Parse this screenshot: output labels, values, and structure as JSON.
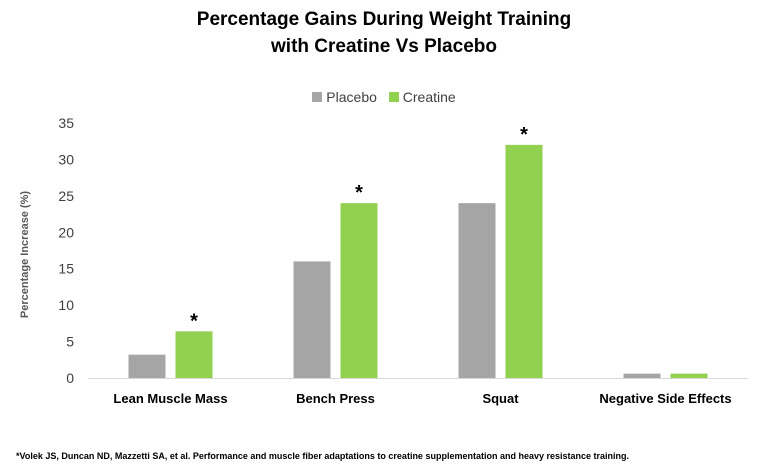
{
  "chart_data": {
    "type": "bar",
    "title_line1": "Percentage Gains During Weight Training",
    "title_line2": "with Creatine Vs Placebo",
    "xlabel": "",
    "ylabel": "Percentage Increase (%)",
    "ylim": [
      0,
      35
    ],
    "yticks": [
      0,
      5,
      10,
      15,
      20,
      25,
      30,
      35
    ],
    "grid": false,
    "legend_position": "top-center",
    "categories": [
      "Lean Muscle Mass",
      "Bench Press",
      "Squat",
      "Negative Side Effects"
    ],
    "series": [
      {
        "name": "Placebo",
        "color": "#A5A5A5",
        "values": [
          3.2,
          16,
          24,
          0.6
        ]
      },
      {
        "name": "Creatine",
        "color": "#92D050",
        "values": [
          6.4,
          24,
          32,
          0.6
        ]
      }
    ],
    "significance_marker": "*",
    "significant_categories": [
      0,
      1,
      2
    ]
  },
  "footnote": "*Volek JS, Duncan ND, Mazzetti SA, et al. Performance and muscle fiber adaptations to creatine supplementation and heavy resistance training."
}
